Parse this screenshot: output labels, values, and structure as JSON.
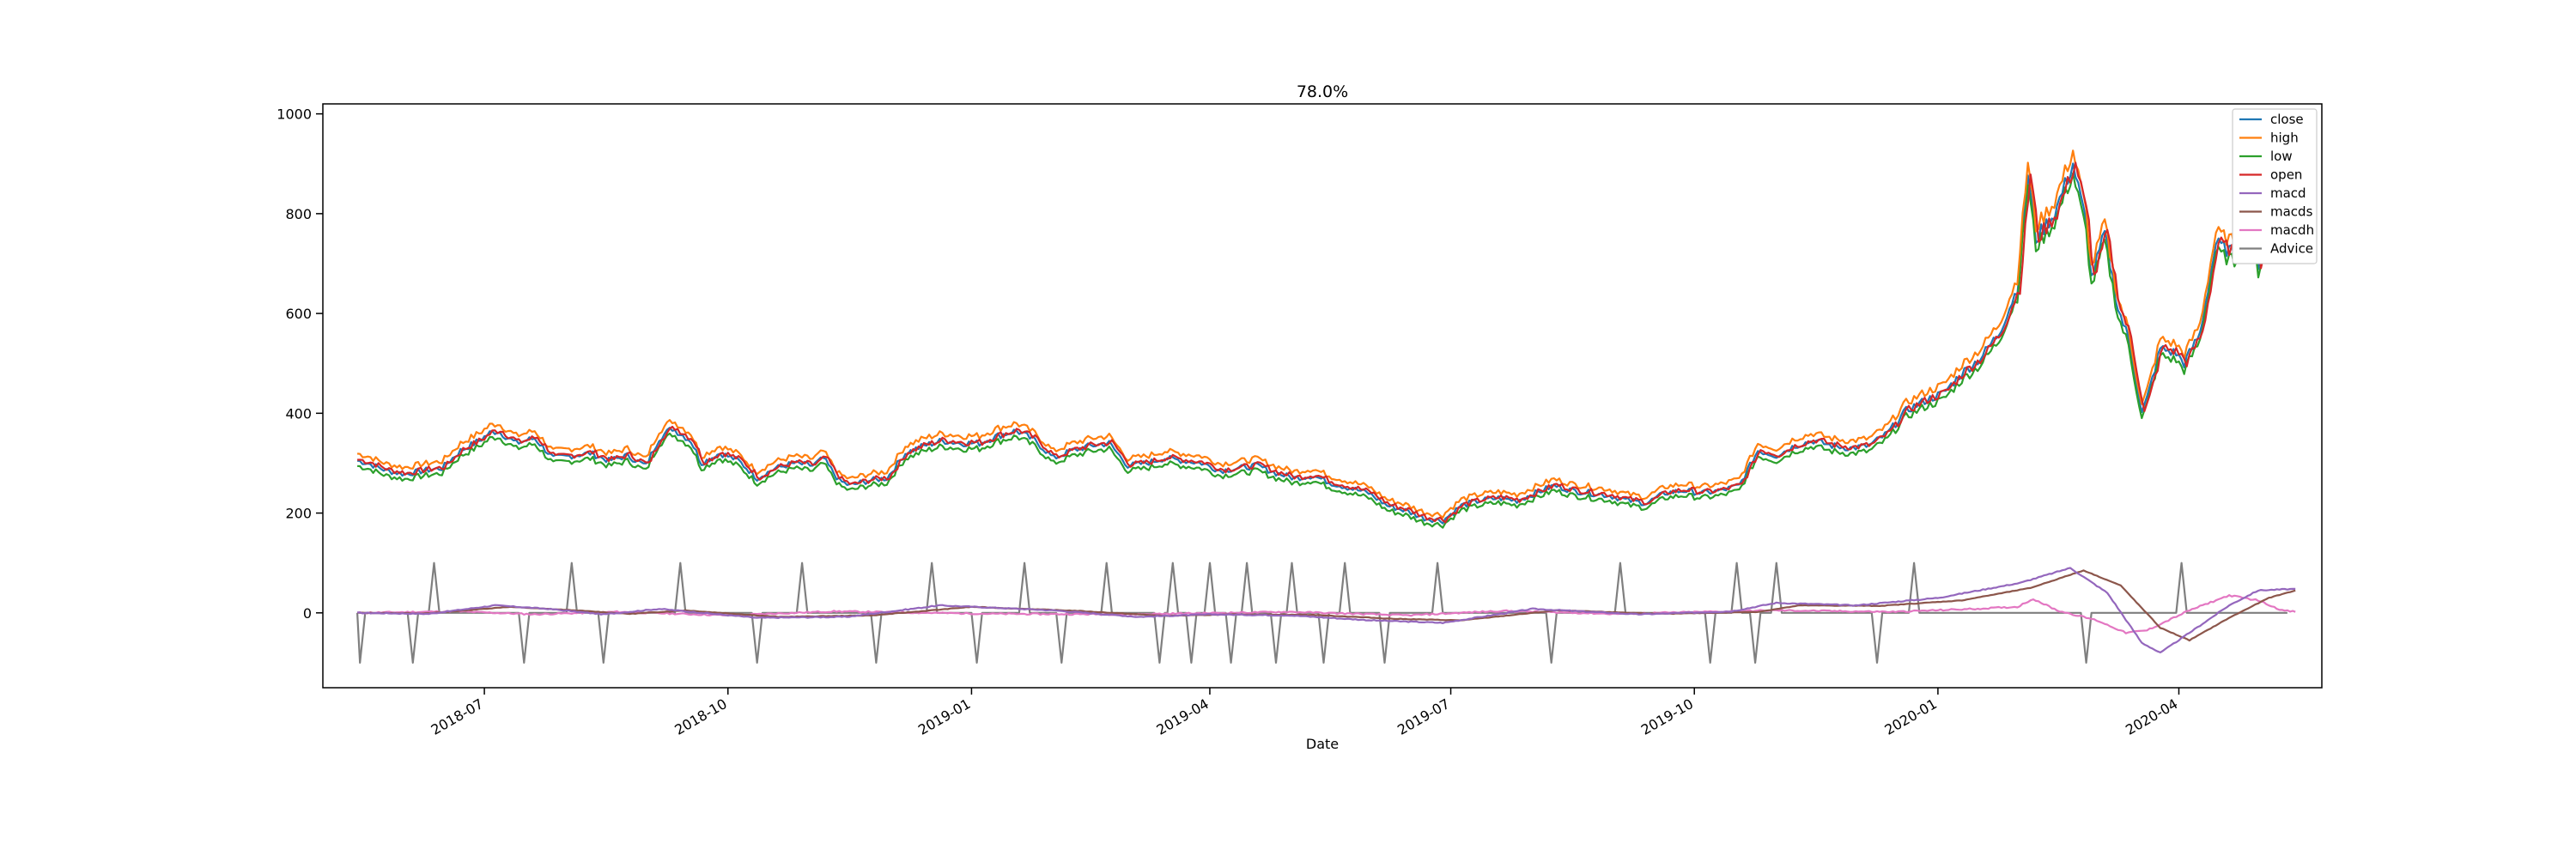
{
  "chart_data": {
    "type": "line",
    "title": "78.0%",
    "xlabel": "Date",
    "ylabel": "",
    "ylim": [
      -150,
      1020
    ],
    "xlim": [
      "2018-05-01",
      "2020-05-25"
    ],
    "yticks": [
      0,
      200,
      400,
      600,
      800,
      1000
    ],
    "xticks": [
      "2018-07",
      "2018-10",
      "2019-01",
      "2019-04",
      "2019-07",
      "2019-10",
      "2020-01",
      "2020-04"
    ],
    "grid": false,
    "legend_position": "top-right",
    "colors": {
      "close": "#1f77b4",
      "high": "#ff7f0e",
      "low": "#2ca02c",
      "open": "#d62728",
      "macd": "#9467bd",
      "macds": "#8c564b",
      "macdh": "#e377c2",
      "Advice": "#7f7f7f"
    },
    "price_anchors": [
      [
        "2018-05-14",
        305
      ],
      [
        "2018-05-18",
        300
      ],
      [
        "2018-05-25",
        285
      ],
      [
        "2018-06-01",
        278
      ],
      [
        "2018-06-08",
        285
      ],
      [
        "2018-06-15",
        290
      ],
      [
        "2018-06-22",
        325
      ],
      [
        "2018-06-29",
        345
      ],
      [
        "2018-07-03",
        360
      ],
      [
        "2018-07-06",
        365
      ],
      [
        "2018-07-13",
        340
      ],
      [
        "2018-07-20",
        350
      ],
      [
        "2018-07-27",
        310
      ],
      [
        "2018-08-03",
        315
      ],
      [
        "2018-08-10",
        320
      ],
      [
        "2018-08-17",
        305
      ],
      [
        "2018-08-24",
        315
      ],
      [
        "2018-08-31",
        295
      ],
      [
        "2018-09-05",
        350
      ],
      [
        "2018-09-10",
        370
      ],
      [
        "2018-09-17",
        345
      ],
      [
        "2018-09-21",
        300
      ],
      [
        "2018-09-28",
        320
      ],
      [
        "2018-10-05",
        305
      ],
      [
        "2018-10-12",
        270
      ],
      [
        "2018-10-19",
        290
      ],
      [
        "2018-10-26",
        300
      ],
      [
        "2018-11-02",
        295
      ],
      [
        "2018-11-06",
        310
      ],
      [
        "2018-11-12",
        265
      ],
      [
        "2018-11-16",
        255
      ],
      [
        "2018-11-23",
        265
      ],
      [
        "2018-11-30",
        270
      ],
      [
        "2018-12-07",
        320
      ],
      [
        "2018-12-14",
        335
      ],
      [
        "2018-12-21",
        345
      ],
      [
        "2018-12-28",
        340
      ],
      [
        "2019-01-04",
        340
      ],
      [
        "2019-01-11",
        355
      ],
      [
        "2019-01-18",
        365
      ],
      [
        "2019-01-25",
        345
      ],
      [
        "2019-02-01",
        310
      ],
      [
        "2019-02-08",
        325
      ],
      [
        "2019-02-15",
        335
      ],
      [
        "2019-02-22",
        340
      ],
      [
        "2019-03-01",
        295
      ],
      [
        "2019-03-08",
        300
      ],
      [
        "2019-03-15",
        310
      ],
      [
        "2019-03-22",
        305
      ],
      [
        "2019-03-29",
        300
      ],
      [
        "2019-04-05",
        285
      ],
      [
        "2019-04-12",
        290
      ],
      [
        "2019-04-19",
        295
      ],
      [
        "2019-04-26",
        280
      ],
      [
        "2019-05-03",
        270
      ],
      [
        "2019-05-10",
        275
      ],
      [
        "2019-05-17",
        260
      ],
      [
        "2019-05-24",
        250
      ],
      [
        "2019-05-31",
        240
      ],
      [
        "2019-06-07",
        215
      ],
      [
        "2019-06-14",
        205
      ],
      [
        "2019-06-21",
        190
      ],
      [
        "2019-06-28",
        185
      ],
      [
        "2019-07-05",
        215
      ],
      [
        "2019-07-12",
        225
      ],
      [
        "2019-07-19",
        230
      ],
      [
        "2019-07-26",
        225
      ],
      [
        "2019-08-02",
        240
      ],
      [
        "2019-08-09",
        255
      ],
      [
        "2019-08-16",
        245
      ],
      [
        "2019-08-23",
        240
      ],
      [
        "2019-08-30",
        235
      ],
      [
        "2019-09-06",
        225
      ],
      [
        "2019-09-13",
        220
      ],
      [
        "2019-09-20",
        240
      ],
      [
        "2019-09-27",
        245
      ],
      [
        "2019-10-04",
        240
      ],
      [
        "2019-10-11",
        245
      ],
      [
        "2019-10-18",
        255
      ],
      [
        "2019-10-25",
        325
      ],
      [
        "2019-11-01",
        315
      ],
      [
        "2019-11-08",
        335
      ],
      [
        "2019-11-15",
        345
      ],
      [
        "2019-11-22",
        335
      ],
      [
        "2019-11-29",
        330
      ],
      [
        "2019-12-06",
        335
      ],
      [
        "2019-12-13",
        360
      ],
      [
        "2019-12-20",
        405
      ],
      [
        "2019-12-27",
        425
      ],
      [
        "2020-01-03",
        440
      ],
      [
        "2020-01-10",
        480
      ],
      [
        "2020-01-17",
        510
      ],
      [
        "2020-01-24",
        560
      ],
      [
        "2020-01-31",
        650
      ],
      [
        "2020-02-04",
        880
      ],
      [
        "2020-02-07",
        750
      ],
      [
        "2020-02-14",
        800
      ],
      [
        "2020-02-21",
        900
      ],
      [
        "2020-02-26",
        780
      ],
      [
        "2020-02-28",
        670
      ],
      [
        "2020-03-04",
        760
      ],
      [
        "2020-03-09",
        610
      ],
      [
        "2020-03-13",
        550
      ],
      [
        "2020-03-18",
        400
      ],
      [
        "2020-03-20",
        430
      ],
      [
        "2020-03-25",
        530
      ],
      [
        "2020-03-31",
        520
      ],
      [
        "2020-04-03",
        500
      ],
      [
        "2020-04-09",
        560
      ],
      [
        "2020-04-15",
        740
      ],
      [
        "2020-04-22",
        720
      ],
      [
        "2020-04-28",
        800
      ],
      [
        "2020-05-01",
        700
      ],
      [
        "2020-05-06",
        790
      ],
      [
        "2020-05-12",
        810
      ]
    ],
    "advice_signals": [
      [
        "2018-06-04",
        -100
      ],
      [
        "2018-06-12",
        100
      ],
      [
        "2018-07-16",
        -100
      ],
      [
        "2018-08-03",
        100
      ],
      [
        "2018-08-15",
        -100
      ],
      [
        "2018-09-13",
        100
      ],
      [
        "2018-10-12",
        -100
      ],
      [
        "2018-10-29",
        100
      ],
      [
        "2018-11-26",
        -100
      ],
      [
        "2018-12-17",
        100
      ],
      [
        "2019-01-03",
        -100
      ],
      [
        "2019-01-21",
        100
      ],
      [
        "2019-02-04",
        -100
      ],
      [
        "2019-02-21",
        100
      ],
      [
        "2019-03-13",
        -100
      ],
      [
        "2019-03-18",
        100
      ],
      [
        "2019-03-25",
        -100
      ],
      [
        "2019-04-01",
        100
      ],
      [
        "2019-04-09",
        -100
      ],
      [
        "2019-04-15",
        100
      ],
      [
        "2019-04-26",
        -100
      ],
      [
        "2019-05-02",
        100
      ],
      [
        "2019-05-14",
        -100
      ],
      [
        "2019-05-22",
        100
      ],
      [
        "2019-06-06",
        -100
      ],
      [
        "2019-06-26",
        100
      ],
      [
        "2019-08-08",
        -100
      ],
      [
        "2019-09-03",
        100
      ],
      [
        "2019-10-07",
        -100
      ],
      [
        "2019-10-17",
        100
      ],
      [
        "2019-10-24",
        -100
      ],
      [
        "2019-11-01",
        100
      ],
      [
        "2019-12-09",
        -100
      ],
      [
        "2019-12-23",
        100
      ],
      [
        "2020-02-26",
        -100
      ],
      [
        "2020-04-02",
        100
      ]
    ],
    "macd_anchors": [
      [
        "2018-05-14",
        0
      ],
      [
        "2018-06-10",
        -2
      ],
      [
        "2018-07-05",
        15
      ],
      [
        "2018-07-25",
        8
      ],
      [
        "2018-08-15",
        -3
      ],
      [
        "2018-09-05",
        8
      ],
      [
        "2018-10-12",
        -10
      ],
      [
        "2018-11-15",
        -8
      ],
      [
        "2018-12-20",
        15
      ],
      [
        "2019-02-01",
        5
      ],
      [
        "2019-03-05",
        -8
      ],
      [
        "2019-04-01",
        -3
      ],
      [
        "2019-05-01",
        -5
      ],
      [
        "2019-06-01",
        -15
      ],
      [
        "2019-06-28",
        -20
      ],
      [
        "2019-08-01",
        8
      ],
      [
        "2019-09-10",
        -3
      ],
      [
        "2019-10-15",
        3
      ],
      [
        "2019-11-01",
        20
      ],
      [
        "2019-12-01",
        15
      ],
      [
        "2020-01-01",
        30
      ],
      [
        "2020-02-01",
        60
      ],
      [
        "2020-02-20",
        90
      ],
      [
        "2020-03-05",
        40
      ],
      [
        "2020-03-18",
        -60
      ],
      [
        "2020-03-25",
        -80
      ],
      [
        "2020-04-05",
        -40
      ],
      [
        "2020-04-20",
        15
      ],
      [
        "2020-05-01",
        45
      ],
      [
        "2020-05-15",
        48
      ]
    ],
    "macds_anchors": [
      [
        "2018-05-14",
        0
      ],
      [
        "2018-06-10",
        -1
      ],
      [
        "2018-07-10",
        12
      ],
      [
        "2018-08-01",
        6
      ],
      [
        "2018-08-25",
        -2
      ],
      [
        "2018-09-15",
        5
      ],
      [
        "2018-10-20",
        -8
      ],
      [
        "2018-11-25",
        -5
      ],
      [
        "2019-01-01",
        12
      ],
      [
        "2019-02-10",
        4
      ],
      [
        "2019-03-15",
        -6
      ],
      [
        "2019-04-10",
        -3
      ],
      [
        "2019-05-10",
        -4
      ],
      [
        "2019-06-10",
        -12
      ],
      [
        "2019-07-05",
        -15
      ],
      [
        "2019-08-10",
        5
      ],
      [
        "2019-09-20",
        -2
      ],
      [
        "2019-10-25",
        2
      ],
      [
        "2019-11-10",
        15
      ],
      [
        "2019-12-10",
        14
      ],
      [
        "2020-01-10",
        25
      ],
      [
        "2020-02-05",
        50
      ],
      [
        "2020-02-25",
        85
      ],
      [
        "2020-03-10",
        55
      ],
      [
        "2020-03-25",
        -30
      ],
      [
        "2020-04-05",
        -55
      ],
      [
        "2020-04-20",
        -10
      ],
      [
        "2020-05-05",
        30
      ],
      [
        "2020-05-15",
        45
      ]
    ],
    "macdh_anchors": [
      [
        "2018-05-14",
        0
      ],
      [
        "2018-06-20",
        3
      ],
      [
        "2018-07-20",
        -3
      ],
      [
        "2018-08-20",
        2
      ],
      [
        "2018-10-01",
        -5
      ],
      [
        "2018-11-10",
        3
      ],
      [
        "2019-01-10",
        -2
      ],
      [
        "2019-03-01",
        -3
      ],
      [
        "2019-05-01",
        2
      ],
      [
        "2019-06-15",
        -5
      ],
      [
        "2019-07-20",
        4
      ],
      [
        "2019-09-01",
        -2
      ],
      [
        "2019-11-01",
        5
      ],
      [
        "2019-12-15",
        2
      ],
      [
        "2020-01-15",
        8
      ],
      [
        "2020-01-31",
        12
      ],
      [
        "2020-02-06",
        28
      ],
      [
        "2020-02-15",
        5
      ],
      [
        "2020-03-01",
        -15
      ],
      [
        "2020-03-12",
        -40
      ],
      [
        "2020-03-20",
        -35
      ],
      [
        "2020-04-05",
        5
      ],
      [
        "2020-04-20",
        35
      ],
      [
        "2020-05-01",
        25
      ],
      [
        "2020-05-10",
        5
      ],
      [
        "2020-05-15",
        2
      ]
    ],
    "series": [
      {
        "name": "close"
      },
      {
        "name": "high"
      },
      {
        "name": "low"
      },
      {
        "name": "open"
      },
      {
        "name": "macd"
      },
      {
        "name": "macds"
      },
      {
        "name": "macdh"
      },
      {
        "name": "Advice"
      }
    ]
  }
}
